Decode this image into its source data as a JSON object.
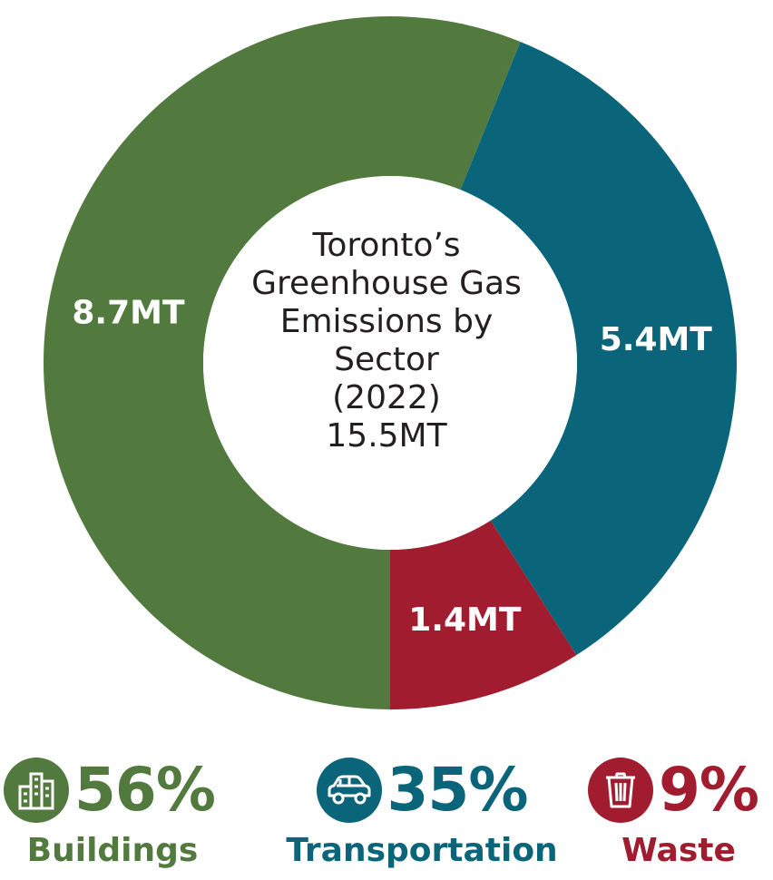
{
  "colors": {
    "buildings": "#527a3e",
    "transportation": "#0b657a",
    "waste": "#a01c2e",
    "center_text": "#231f20"
  },
  "chart_data": {
    "type": "pie",
    "donut": true,
    "title_lines": [
      "Toronto’s",
      "Greenhouse Gas",
      "Emissions by",
      "Sector",
      "(2022)",
      "15.5MT"
    ],
    "unit": "MT",
    "total": 15.5,
    "slices": [
      {
        "name": "Buildings",
        "value": 8.7,
        "label": "8.7MT",
        "percent_label": "56%",
        "color": "#527a3e",
        "icon": "buildings-icon"
      },
      {
        "name": "Transportation",
        "value": 5.4,
        "label": "5.4MT",
        "percent_label": "35%",
        "color": "#0b657a",
        "icon": "car-icon"
      },
      {
        "name": "Waste",
        "value": 1.4,
        "label": "1.4MT",
        "percent_label": "9%",
        "color": "#a01c2e",
        "icon": "trash-bin-icon"
      }
    ]
  }
}
